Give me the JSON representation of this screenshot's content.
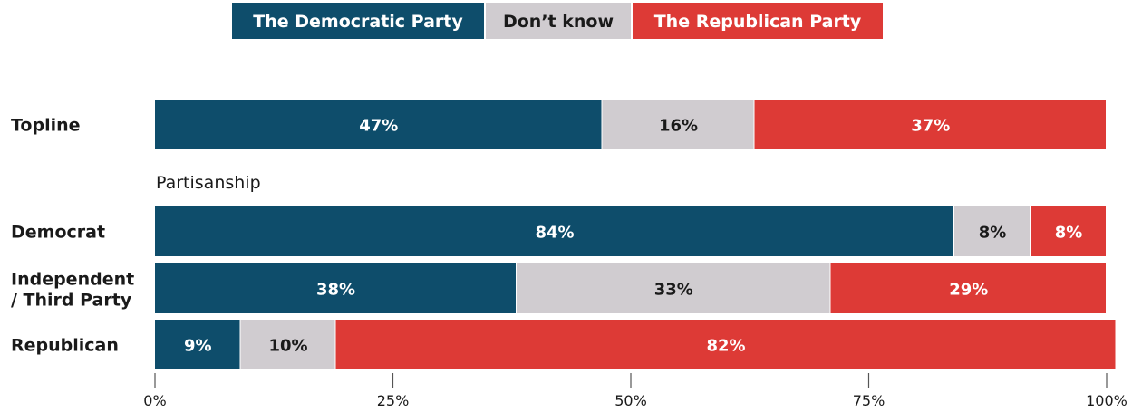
{
  "chart_data": {
    "type": "bar",
    "orientation": "horizontal",
    "stacked": true,
    "categories": [
      "Topline",
      "Democrat",
      "Independent / Third Party",
      "Republican"
    ],
    "group_label": "Partisanship",
    "series": [
      {
        "name": "The Democratic Party",
        "values": [
          47,
          84,
          38,
          9
        ],
        "color": "#0e4d6b"
      },
      {
        "name": "Don’t know",
        "values": [
          16,
          8,
          33,
          10
        ],
        "color": "#d0ccd0"
      },
      {
        "name": "The Republican Party",
        "values": [
          37,
          8,
          29,
          82
        ],
        "color": "#dd3a36"
      }
    ],
    "value_labels": [
      [
        "47%",
        "16%",
        "37%"
      ],
      [
        "84%",
        "8%",
        "8%"
      ],
      [
        "38%",
        "33%",
        "29%"
      ],
      [
        "9%",
        "10%",
        "82%"
      ]
    ],
    "xlim": [
      0,
      100
    ],
    "ticks": [
      0,
      25,
      50,
      75,
      100
    ],
    "tick_labels": [
      "0%",
      "25%",
      "50%",
      "75%",
      "100%"
    ],
    "legend_position": "top-center",
    "grid": false
  }
}
